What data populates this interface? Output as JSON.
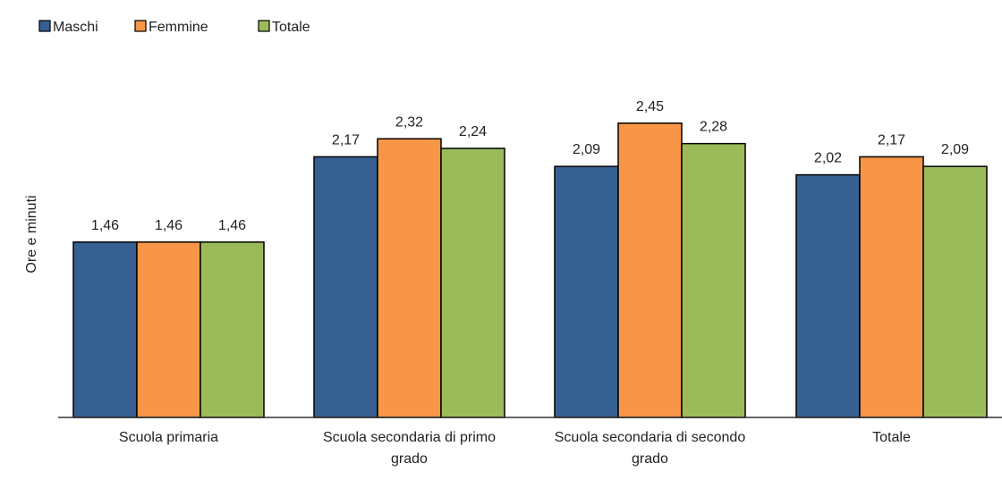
{
  "chart_data": {
    "type": "bar",
    "title": "",
    "xlabel": "",
    "ylabel": "Ore e minuti",
    "categories": [
      [
        "Scuola primaria"
      ],
      [
        "Scuola secondaria di primo",
        "grado"
      ],
      [
        "Scuola secondaria di secondo",
        "grado"
      ],
      [
        "Totale"
      ]
    ],
    "series": [
      {
        "name": "Maschi",
        "color": "#366092",
        "values": [
          1.46,
          2.17,
          2.09,
          2.02
        ],
        "labels": [
          "1,46",
          "2,17",
          "2,09",
          "2,02"
        ]
      },
      {
        "name": "Femmine",
        "color": "#F79646",
        "values": [
          1.46,
          2.32,
          2.45,
          2.17
        ],
        "labels": [
          "1,46",
          "2,32",
          "2,45",
          "2,17"
        ]
      },
      {
        "name": "Totale",
        "color": "#9BBB59",
        "values": [
          1.46,
          2.24,
          2.28,
          2.09
        ],
        "labels": [
          "1,46",
          "2,24",
          "2,28",
          "2,09"
        ]
      }
    ],
    "ylim": [
      0,
      2.75
    ],
    "grid": false,
    "legend": "top-left"
  }
}
